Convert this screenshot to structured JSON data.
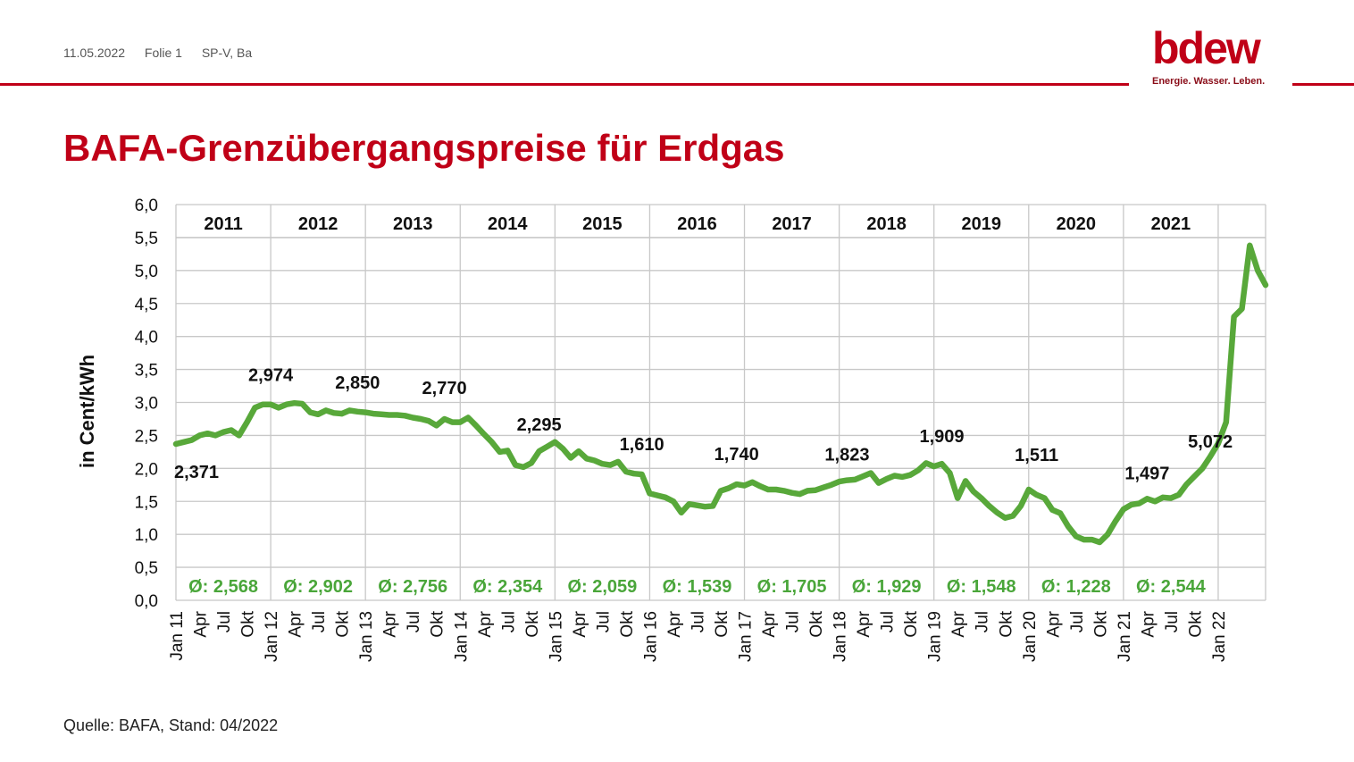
{
  "header": {
    "date": "11.05.2022",
    "slide": "Folie 1",
    "author": "SP-V, Ba"
  },
  "logo": {
    "word": "bdew",
    "tagline": "Energie. Wasser. Leben."
  },
  "title": "BAFA-Grenzübergangspreise für Erdgas",
  "source": "Quelle: BAFA, Stand: 04/2022",
  "colors": {
    "accent": "#c00017",
    "line": "#58a83a",
    "avg_text": "#4aa63a",
    "grid": "#c8c8c8"
  },
  "chart_data": {
    "type": "line",
    "ylabel": "in Cent/kWh",
    "ylim": [
      0,
      6
    ],
    "yticks": [
      "0,0",
      "0,5",
      "1,0",
      "1,5",
      "2,0",
      "2,5",
      "3,0",
      "3,5",
      "4,0",
      "4,5",
      "5,0",
      "5,5",
      "6,0"
    ],
    "x_tick_labels": [
      "Jan 11",
      "Apr",
      "Jul",
      "Okt",
      "Jan 12",
      "Apr",
      "Jul",
      "Okt",
      "Jan 13",
      "Apr",
      "Jul",
      "Okt",
      "Jan 14",
      "Apr",
      "Jul",
      "Okt",
      "Jan 15",
      "Apr",
      "Jul",
      "Okt",
      "Jan 16",
      "Apr",
      "Jul",
      "Okt",
      "Jan 17",
      "Apr",
      "Jul",
      "Okt",
      "Jan 18",
      "Apr",
      "Jul",
      "Okt",
      "Jan 19",
      "Apr",
      "Jul",
      "Okt",
      "Jan 20",
      "Apr",
      "Jul",
      "Okt",
      "Jan 21",
      "Apr",
      "Jul",
      "Okt",
      "Jan 22"
    ],
    "years": [
      "2011",
      "2012",
      "2013",
      "2014",
      "2015",
      "2016",
      "2017",
      "2018",
      "2019",
      "2020",
      "2021"
    ],
    "averages": [
      "Ø: 2,568",
      "Ø: 2,902",
      "Ø: 2,756",
      "Ø: 2,354",
      "Ø: 2,059",
      "Ø: 1,539",
      "Ø: 1,705",
      "Ø: 1,929",
      "Ø: 1,548",
      "Ø: 1,228",
      "Ø: 2,544"
    ],
    "series": [
      {
        "values": [
          2.37,
          2.4,
          2.43,
          2.5,
          2.53,
          2.5,
          2.55,
          2.58,
          2.5,
          2.7,
          2.92,
          2.97,
          2.97,
          2.92,
          2.97,
          2.99,
          2.98,
          2.85,
          2.82,
          2.88,
          2.84,
          2.83,
          2.88,
          2.86,
          2.85,
          2.83,
          2.82,
          2.81,
          2.81,
          2.8,
          2.77,
          2.75,
          2.72,
          2.65,
          2.75,
          2.7,
          2.7,
          2.77,
          2.65,
          2.52,
          2.4,
          2.25,
          2.27,
          2.05,
          2.02,
          2.08,
          2.26,
          2.33,
          2.4,
          2.3,
          2.16,
          2.26,
          2.15,
          2.12,
          2.07,
          2.05,
          2.1,
          1.95,
          1.92,
          1.91,
          1.62,
          1.59,
          1.56,
          1.5,
          1.33,
          1.46,
          1.44,
          1.42,
          1.43,
          1.66,
          1.7,
          1.76,
          1.74,
          1.79,
          1.73,
          1.68,
          1.68,
          1.66,
          1.63,
          1.61,
          1.66,
          1.67,
          1.71,
          1.75,
          1.8,
          1.82,
          1.83,
          1.88,
          1.93,
          1.78,
          1.84,
          1.89,
          1.87,
          1.9,
          1.97,
          2.08,
          2.03,
          2.07,
          1.93,
          1.55,
          1.81,
          1.65,
          1.55,
          1.43,
          1.33,
          1.25,
          1.28,
          1.43,
          1.68,
          1.6,
          1.55,
          1.37,
          1.32,
          1.12,
          0.97,
          0.92,
          0.92,
          0.88,
          1.0,
          1.2,
          1.38,
          1.45,
          1.47,
          1.54,
          1.5,
          1.56,
          1.55,
          1.6,
          1.76,
          1.88,
          2.0,
          2.18,
          2.38,
          2.7,
          4.3,
          4.42,
          5.38,
          5.0,
          4.78
        ]
      }
    ],
    "annotations": [
      {
        "label": "2,371",
        "index": 0,
        "dy": 38,
        "anchor": "start"
      },
      {
        "label": "2,974",
        "index": 12,
        "dy": -26,
        "anchor": "middle"
      },
      {
        "label": "2,850",
        "index": 23,
        "dy": -26,
        "anchor": "middle"
      },
      {
        "label": "2,770",
        "index": 34,
        "dy": -28,
        "anchor": "middle"
      },
      {
        "label": "2,295",
        "index": 46,
        "dy": -23,
        "anchor": "middle"
      },
      {
        "label": "1,610",
        "index": 59,
        "dy": -27,
        "anchor": "middle"
      },
      {
        "label": "1,740",
        "index": 71,
        "dy": -27,
        "anchor": "middle"
      },
      {
        "label": "1,823",
        "index": 85,
        "dy": -22,
        "anchor": "middle"
      },
      {
        "label": "1,909",
        "index": 97,
        "dy": -24,
        "anchor": "middle"
      },
      {
        "label": "1,511",
        "index": 109,
        "dy": -38,
        "anchor": "middle"
      },
      {
        "label": "1,497",
        "index": 123,
        "dy": -22,
        "anchor": "middle"
      },
      {
        "label": "5,072",
        "index": 131,
        "dy": -10,
        "anchor": "middle"
      }
    ]
  }
}
